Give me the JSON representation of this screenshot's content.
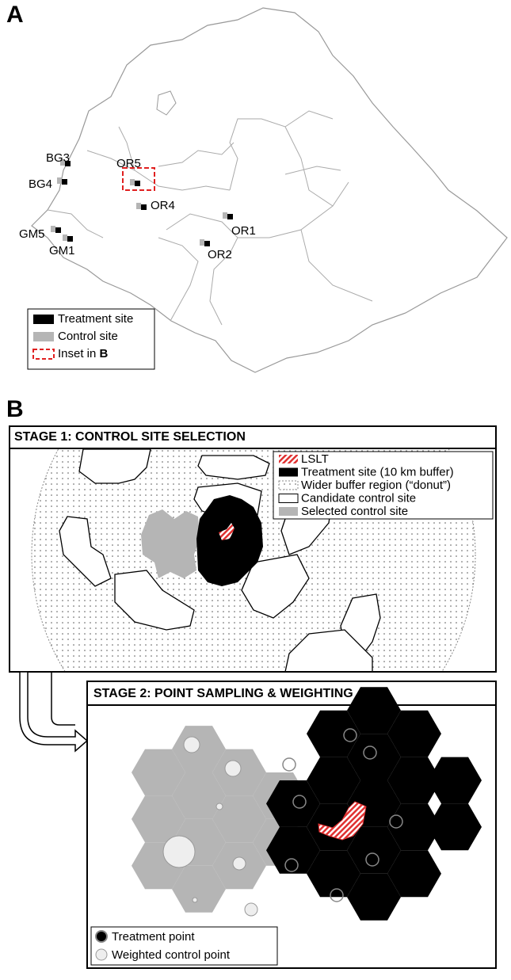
{
  "panel_a": {
    "label": "A",
    "sites": [
      "BG3",
      "BG4",
      "OR5",
      "OR4",
      "OR1",
      "OR2",
      "GM5",
      "GM1"
    ],
    "legend": {
      "treatment": "Treatment site",
      "control": "Control site",
      "inset": "Inset in",
      "inset_bold": "B"
    }
  },
  "panel_b": {
    "label": "B",
    "stage1": {
      "title": "STAGE 1: CONTROL SITE SELECTION",
      "legend": [
        "LSLT",
        "Treatment site (10 km buffer)",
        "Wider buffer region (“donut”)",
        "Candidate control site",
        "Selected control site"
      ]
    },
    "stage2": {
      "title": "STAGE 2: POINT SAMPLING & WEIGHTING",
      "legend": [
        "Treatment point",
        "Weighted control point"
      ]
    }
  }
}
